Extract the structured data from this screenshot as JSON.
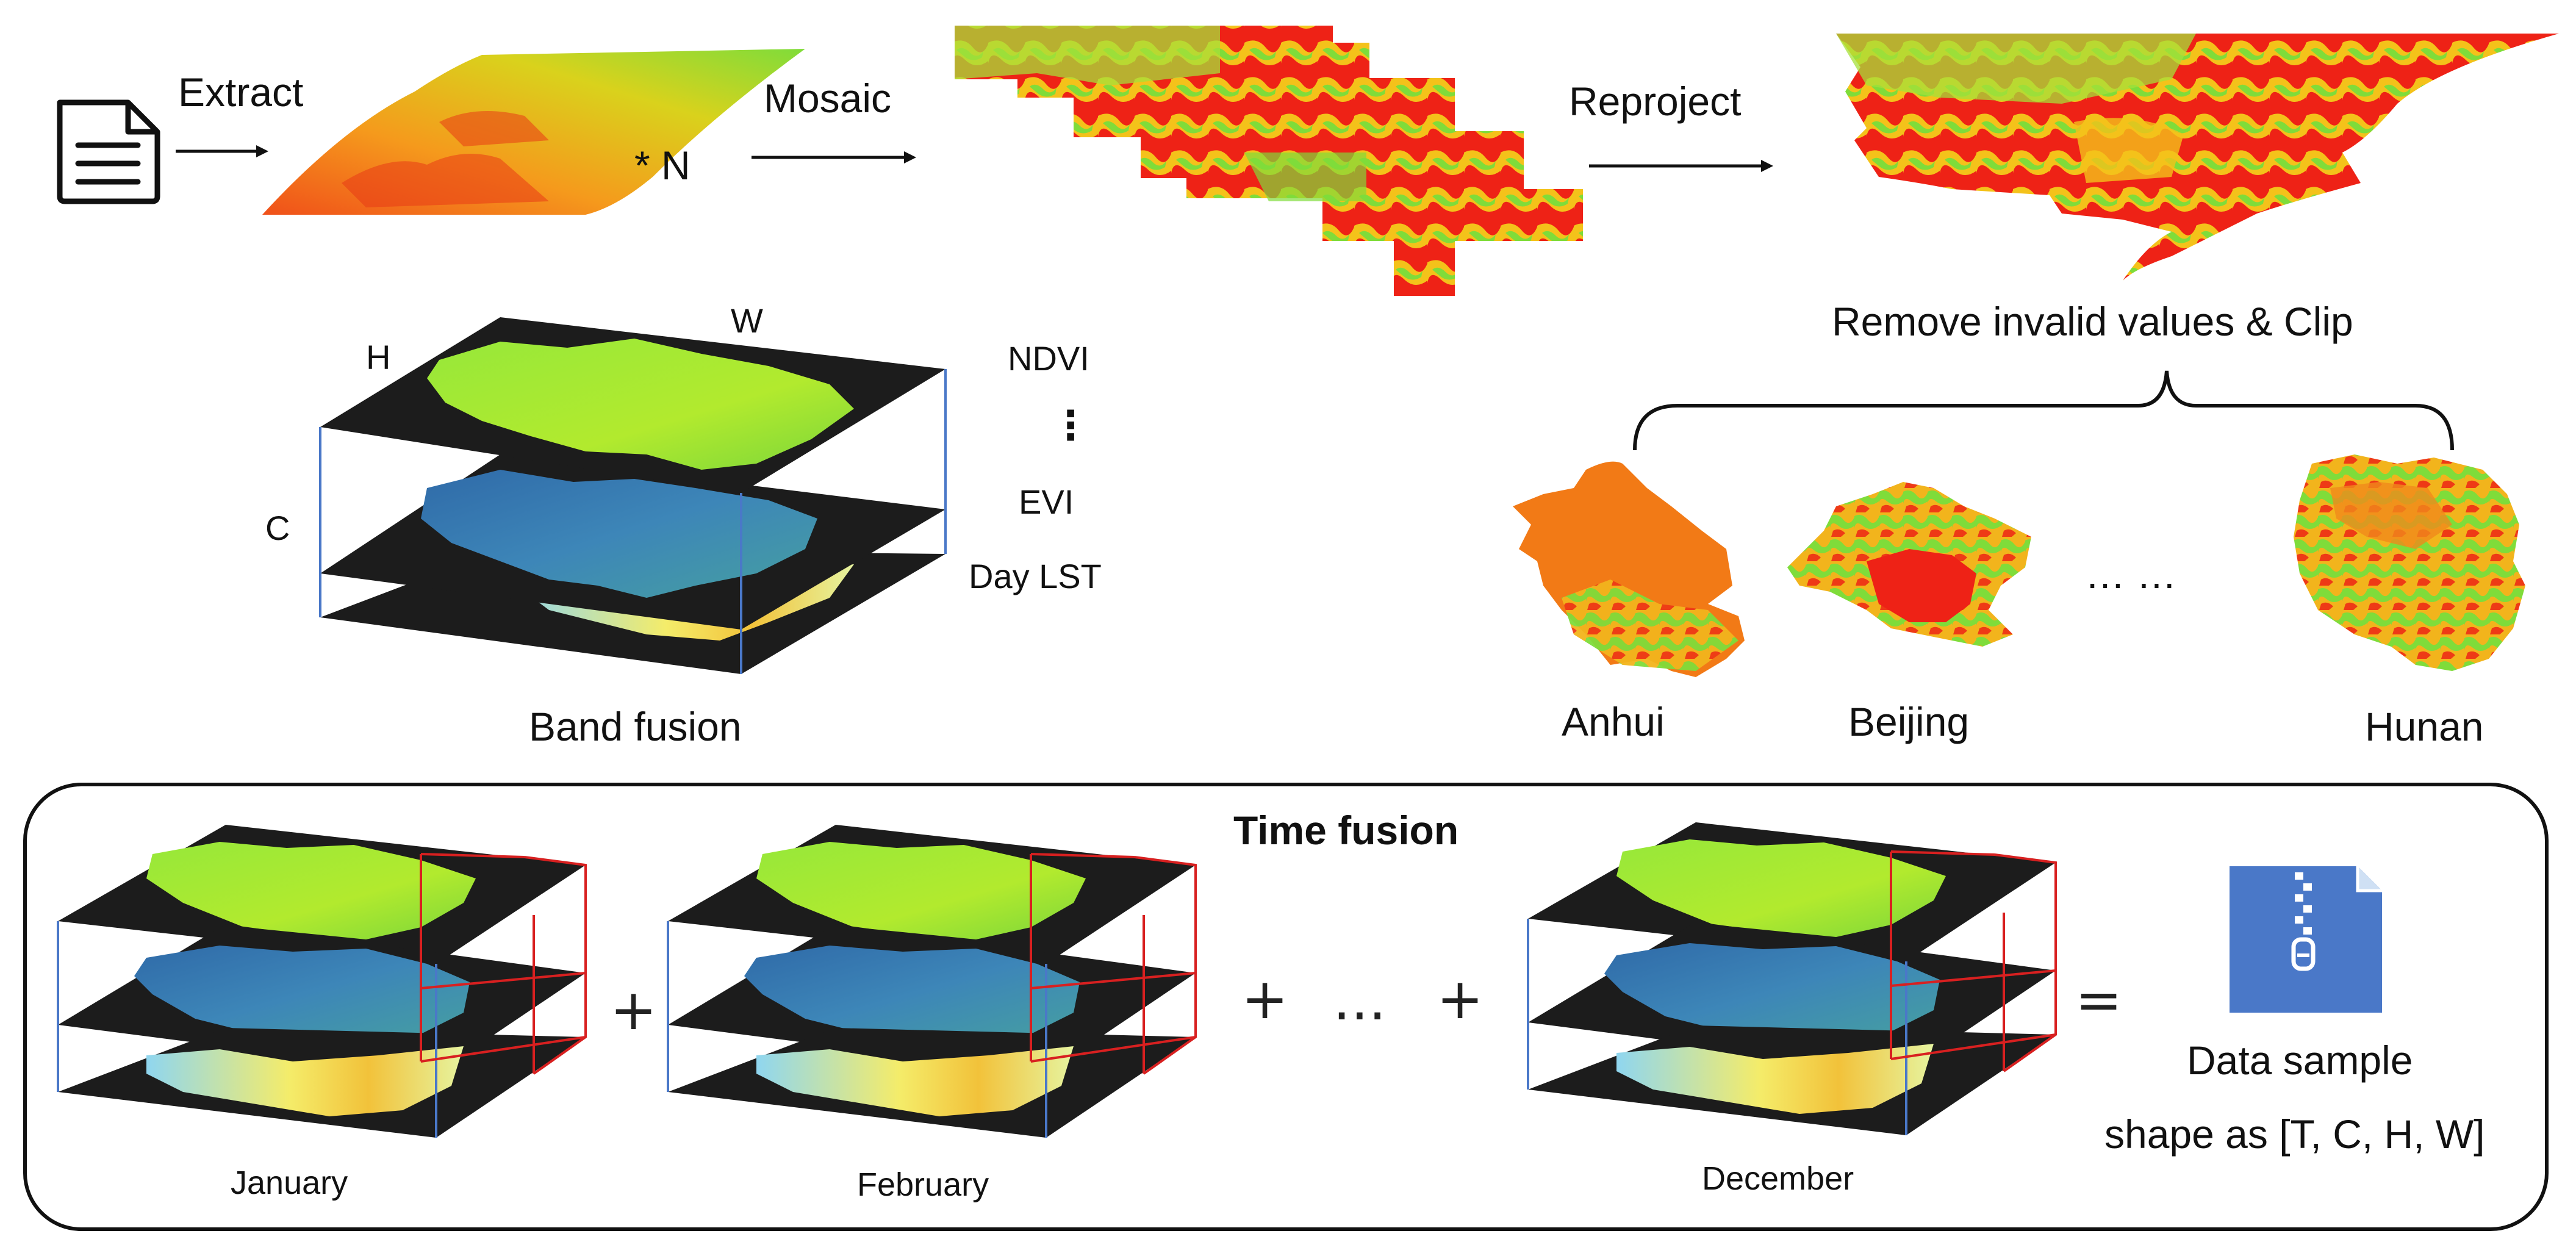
{
  "pipeline": {
    "extract_label": "Extract",
    "times_n": "* N",
    "mosaic_label": "Mosaic",
    "reproject_label": "Reproject",
    "remove_clip_label": "Remove invalid values & Clip"
  },
  "band_fusion": {
    "title": "Band fusion",
    "dim_h": "H",
    "dim_w": "W",
    "dim_c": "C",
    "bands": [
      "NDVI",
      "⋮",
      "EVI",
      "Day LST"
    ]
  },
  "provinces": {
    "items": [
      "Anhui",
      "Beijing",
      "Hunan"
    ],
    "ellipsis": "…   …"
  },
  "time_fusion": {
    "title": "Time fusion",
    "months": [
      "January",
      "February",
      "December"
    ],
    "plus": "+",
    "ellipsis": "...",
    "equals": "=",
    "result_label": "Data sample",
    "shape_label": "shape as [T, C, H, W]"
  },
  "colors": {
    "heat_red": "#e8231a",
    "heat_orange": "#f47a1a",
    "heat_yellow": "#f2d41c",
    "heat_green": "#86e03a",
    "evi_blue": "#3a7bb8",
    "lst_yellow": "#f4e860",
    "cube_frame_blue": "#4a78c8",
    "cube_frame_red": "#d82020",
    "zip_blue": "#4a78c8",
    "slab_black": "#1c1c1c"
  },
  "icons": [
    "document-icon",
    "arrow-right-icon",
    "zip-file-icon",
    "curly-brace-icon"
  ]
}
